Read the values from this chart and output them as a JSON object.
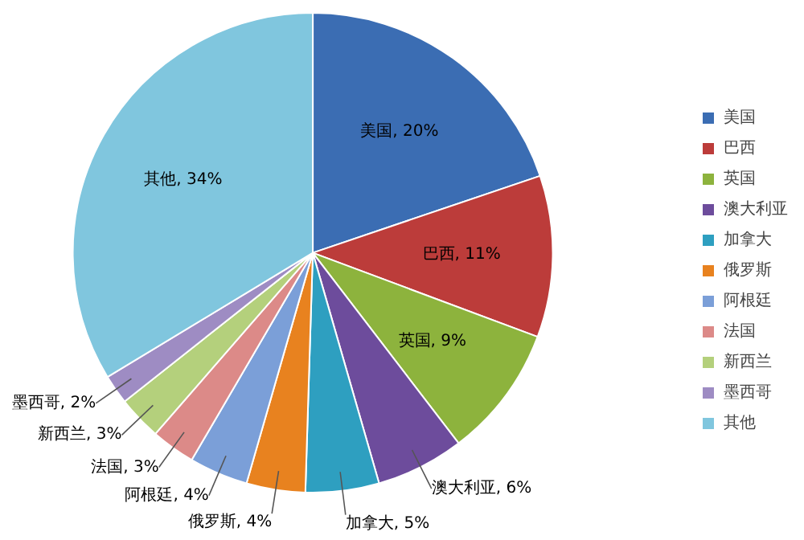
{
  "chart_data": {
    "type": "pie",
    "categories": [
      "美国",
      "巴西",
      "英国",
      "澳大利亚",
      "加拿大",
      "俄罗斯",
      "阿根廷",
      "法国",
      "新西兰",
      "墨西哥",
      "其他"
    ],
    "values": [
      20,
      11,
      9,
      6,
      5,
      4,
      4,
      3,
      3,
      2,
      34
    ],
    "value_labels": [
      "美国, 20%",
      "巴西, 11%",
      "英国, 9%",
      "澳大利亚, 6%",
      "加拿大, 5%",
      "俄罗斯, 4%",
      "阿根廷, 4%",
      "法国, 3%",
      "新西兰, 3%",
      "墨西哥, 2%",
      "其他, 34%"
    ],
    "colors": [
      "#3b6db3",
      "#bc3c3a",
      "#8db33d",
      "#6d4c9c",
      "#2e9fc0",
      "#e8821f",
      "#7b9fd8",
      "#dc8a88",
      "#b4d07c",
      "#9e8cc3",
      "#80c6de"
    ],
    "legend": "right"
  }
}
